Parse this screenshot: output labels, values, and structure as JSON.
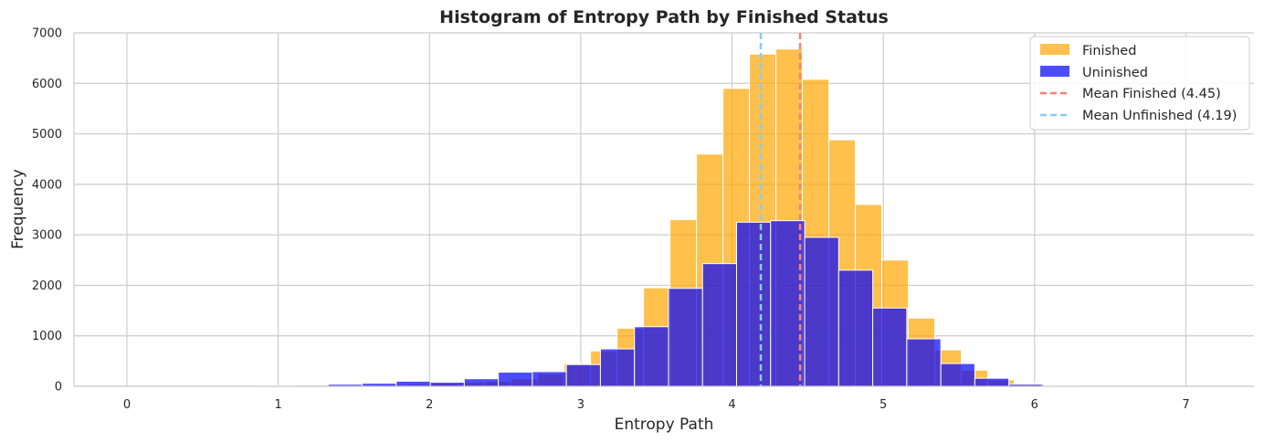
{
  "chart_data": {
    "type": "bar",
    "title": "Histogram of Entropy Path by Finished Status",
    "xlabel": "Entropy Path",
    "ylabel": "Frequency",
    "xlim": [
      -0.35,
      7.45
    ],
    "ylim": [
      0,
      7000
    ],
    "xticks": [
      "0",
      "1",
      "2",
      "3",
      "4",
      "5",
      "6",
      "7"
    ],
    "yticks": [
      "0",
      "1000",
      "2000",
      "3000",
      "4000",
      "5000",
      "6000",
      "7000"
    ],
    "grid": true,
    "legend_position": "top-right",
    "series": [
      {
        "name": "Finished",
        "color": "#FFA500",
        "opacity": 0.7,
        "bin_width": 0.175,
        "bin_start": 1.315,
        "values": [
          20,
          20,
          30,
          40,
          60,
          80,
          100,
          150,
          250,
          450,
          700,
          1150,
          1950,
          3300,
          4600,
          5900,
          6580,
          6680,
          6080,
          4880,
          3600,
          2500,
          1350,
          720,
          320,
          130,
          50,
          20
        ]
      },
      {
        "name": "Uninished",
        "color": "#0000FF",
        "opacity": 0.7,
        "bin_width": 0.225,
        "bin_start": 0.88,
        "values": [
          10,
          20,
          40,
          60,
          100,
          80,
          150,
          280,
          290,
          430,
          740,
          1180,
          1940,
          2430,
          3250,
          3280,
          2950,
          2300,
          1550,
          940,
          450,
          160,
          40,
          10
        ]
      }
    ],
    "mean_lines": [
      {
        "name": "Mean Finished (4.45)",
        "value": 4.45,
        "color": "#FA8072"
      },
      {
        "name": "Mean Unfinished (4.19)",
        "value": 4.19,
        "color": "#87CEEB"
      }
    ]
  }
}
